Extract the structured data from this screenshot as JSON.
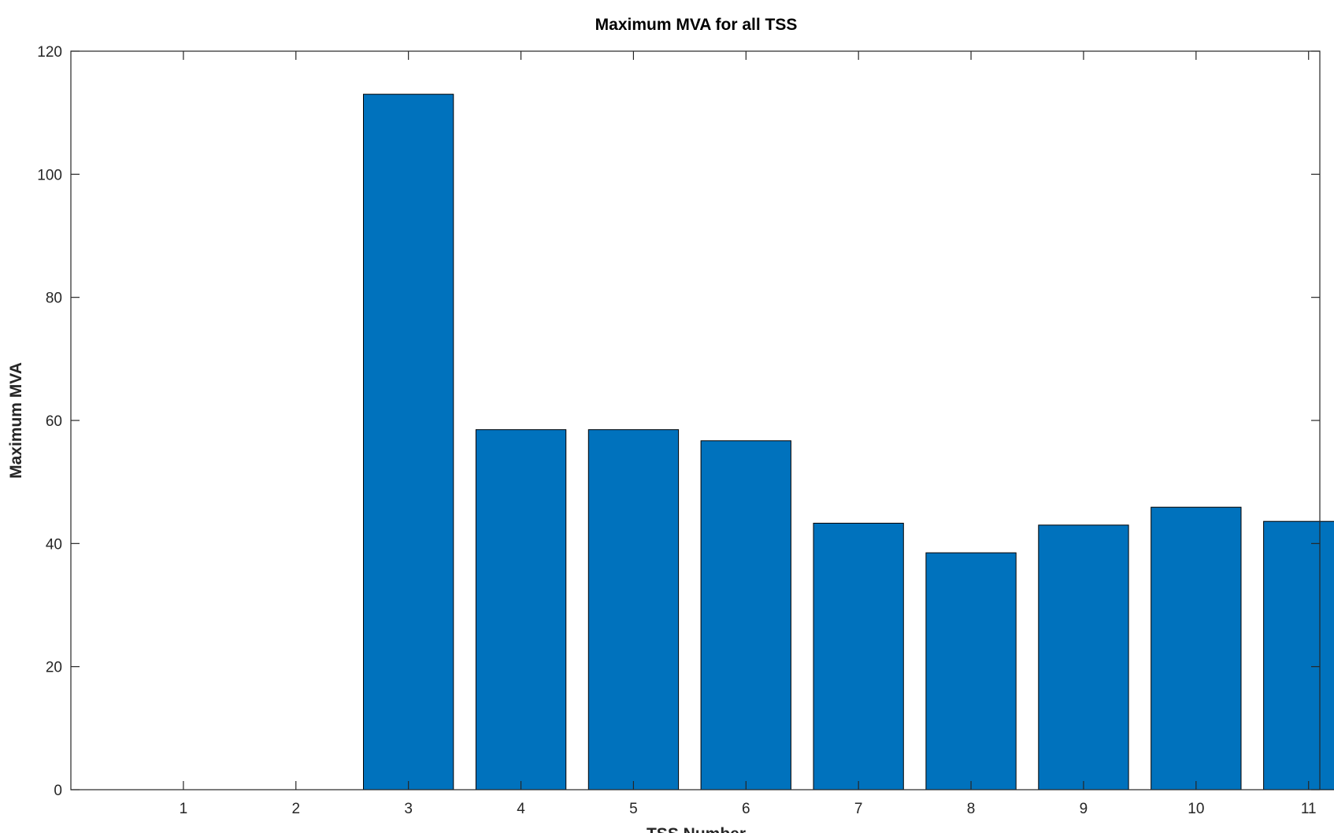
{
  "chart_data": {
    "type": "bar",
    "title": "Maximum MVA for all TSS",
    "xlabel": "TSS Number",
    "ylabel": "Maximum MVA",
    "categories": [
      "1",
      "2",
      "3",
      "4",
      "5",
      "6",
      "7",
      "8",
      "9",
      "10",
      "11"
    ],
    "values": [
      0,
      0,
      113,
      58.5,
      58.5,
      56.7,
      43.3,
      38.5,
      43,
      45.9,
      43.6
    ],
    "ylim": [
      0,
      120
    ],
    "yticks": [
      0,
      20,
      40,
      60,
      80,
      100,
      120
    ],
    "xlim": [
      0,
      11.1
    ],
    "grid": false,
    "legend": "none",
    "bar_color": "#0072bd",
    "bar_edge_color": "#000000",
    "axis_color": "#262626"
  }
}
